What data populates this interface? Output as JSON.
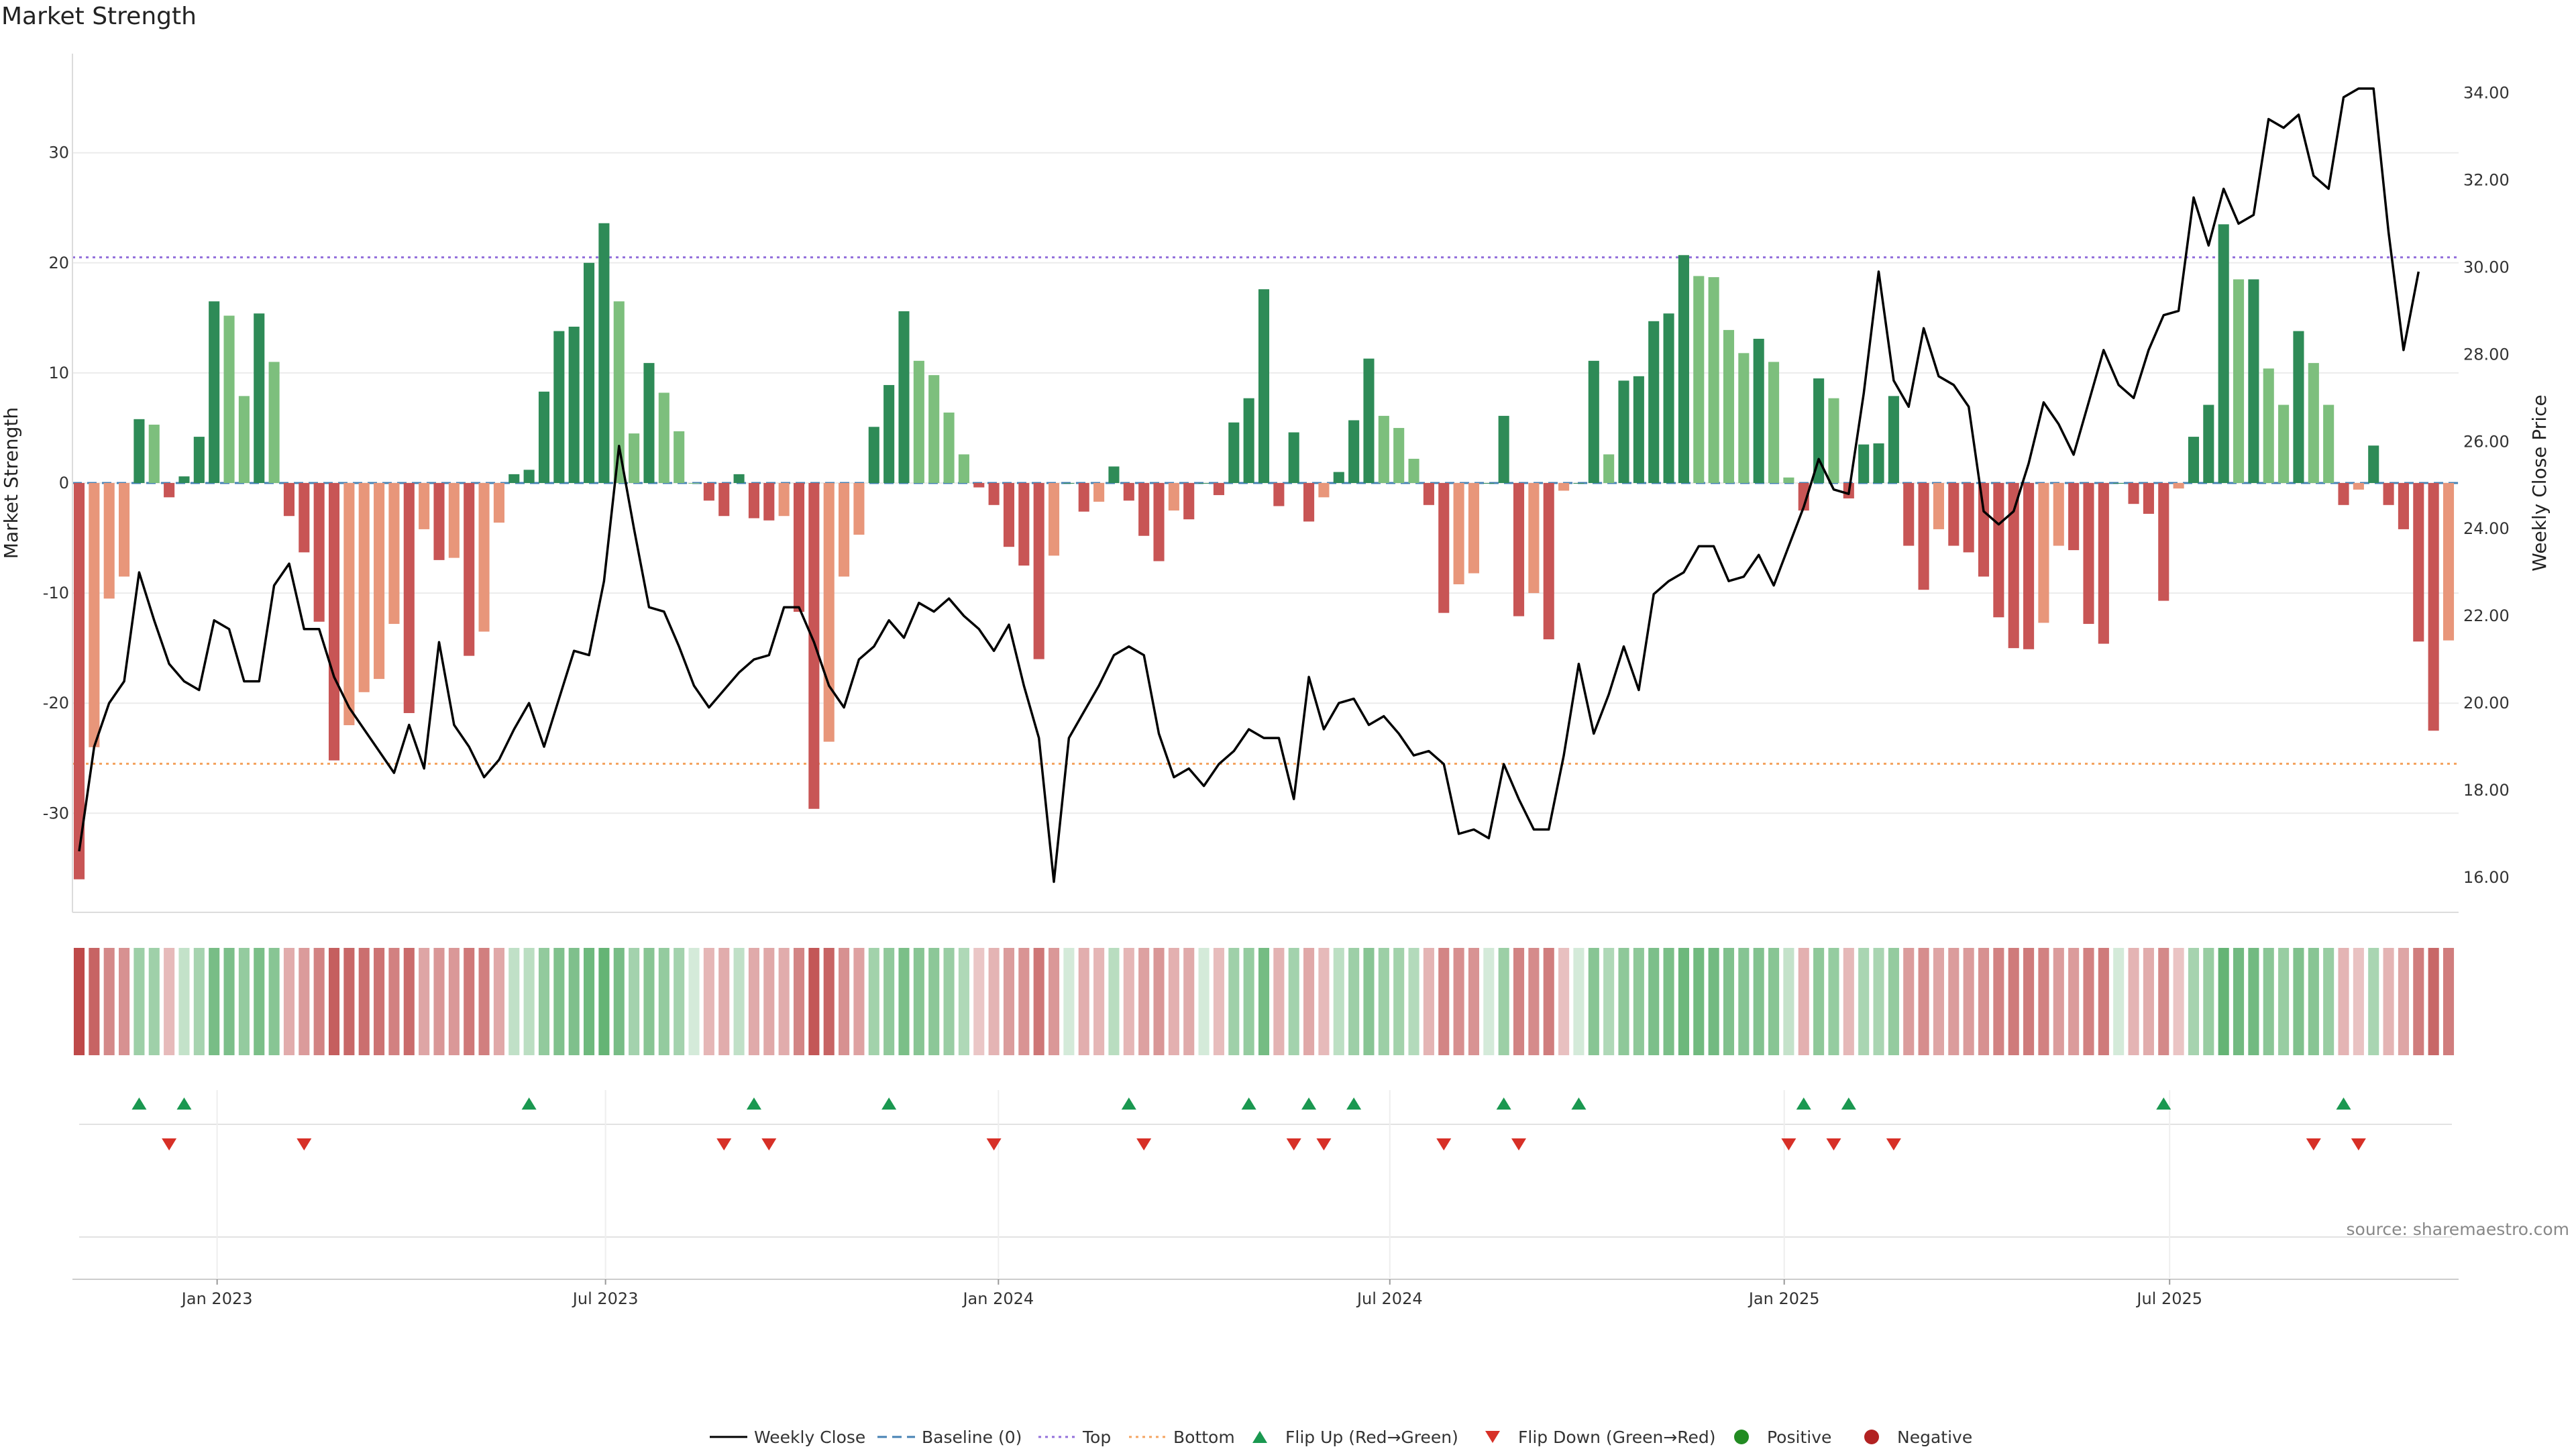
{
  "chart_data": {
    "type": "bar",
    "title": "Market Strength",
    "source": "source: sharemaestro.com",
    "y_left_label": "Market Strength",
    "y_right_label": "Weekly Close Price",
    "y_left_range": [
      -39,
      39
    ],
    "y_left_ticks": [
      -30,
      -20,
      -10,
      0,
      10,
      20,
      30
    ],
    "y_right_range": [
      15.2,
      34.9
    ],
    "y_right_ticks": [
      "16.00",
      "18.00",
      "20.00",
      "22.00",
      "24.00",
      "26.00",
      "28.00",
      "30.00",
      "32.00",
      "34.00"
    ],
    "x_ticks": [
      "Jan 2023",
      "Jul 2023",
      "Jan 2024",
      "Jul 2024",
      "Jan 2025",
      "Jul 2025"
    ],
    "x_tick_weeks": [
      9.2,
      35.1,
      61.3,
      87.4,
      113.7,
      139.4
    ],
    "top_line": 20.5,
    "bottom_line": -25.5,
    "strength": [
      -36,
      -24,
      -10.5,
      -8.5,
      5.8,
      5.3,
      -1.3,
      0.6,
      4.2,
      16.5,
      15.2,
      7.9,
      15.4,
      11,
      -3,
      -6.3,
      -12.6,
      -25.2,
      -22,
      -19,
      -17.8,
      -12.8,
      -20.9,
      -4.2,
      -7,
      -6.8,
      -15.7,
      -13.5,
      -3.6,
      0.8,
      1.2,
      8.3,
      13.8,
      14.2,
      20,
      23.6,
      16.5,
      4.5,
      10.9,
      8.2,
      4.7,
      0,
      -1.6,
      -3,
      0.8,
      -3.2,
      -3.4,
      -3,
      -11.7,
      -29.6,
      -23.5,
      -8.5,
      -4.7,
      5.1,
      8.9,
      15.6,
      11.1,
      9.8,
      6.4,
      2.6,
      -0.4,
      -2,
      -5.8,
      -7.5,
      -16,
      -6.6,
      0,
      -2.6,
      -1.7,
      1.5,
      -1.6,
      -4.8,
      -7.1,
      -2.5,
      -3.3,
      0,
      -1.1,
      5.5,
      7.7,
      17.6,
      -2.1,
      4.6,
      -3.5,
      -1.3,
      1,
      5.7,
      11.3,
      6.1,
      5,
      2.2,
      -2,
      -11.8,
      -9.2,
      -8.2,
      0,
      6.1,
      -12.1,
      -10,
      -14.2,
      -0.7,
      0,
      11.1,
      2.6,
      9.3,
      9.7,
      14.7,
      15.4,
      20.7,
      18.8,
      18.7,
      13.9,
      11.8,
      13.1,
      11,
      0.5,
      -2.5,
      9.5,
      7.7,
      -1.4,
      3.5,
      3.6,
      7.9,
      -5.7,
      -9.7,
      -4.2,
      -5.7,
      -6.3,
      -8.5,
      -12.2,
      -15,
      -15.1,
      -12.7,
      -5.7,
      -6.1,
      -12.8,
      -14.6,
      0,
      -1.9,
      -2.8,
      -10.7,
      -0.5,
      4.2,
      7.1,
      23.5,
      18.5,
      18.5,
      10.4,
      7.1,
      13.8,
      10.9,
      7.1,
      -2,
      -0.6,
      3.4,
      -2,
      -4.2,
      -14.4,
      -22.5,
      -14.3
    ],
    "price": [
      16.6,
      19,
      20,
      20.5,
      23,
      21.9,
      20.9,
      20.5,
      20.3,
      21.9,
      21.7,
      20.5,
      20.5,
      22.7,
      23.2,
      21.7,
      21.7,
      20.6,
      19.9,
      19.4,
      18.9,
      18.4,
      19.5,
      18.5,
      21.4,
      19.5,
      19,
      18.3,
      18.7,
      19.4,
      20,
      19,
      20.1,
      21.2,
      21.1,
      22.8,
      25.9,
      24,
      22.2,
      22.1,
      21.3,
      20.4,
      19.9,
      20.3,
      20.7,
      21,
      21.1,
      22.2,
      22.2,
      21.4,
      20.4,
      19.9,
      21,
      21.3,
      21.9,
      21.5,
      22.3,
      22.1,
      22.4,
      22,
      21.7,
      21.2,
      21.8,
      20.4,
      19.2,
      15.9,
      19.2,
      19.8,
      20.4,
      21.1,
      21.3,
      21.1,
      19.3,
      18.3,
      18.5,
      18.1,
      18.6,
      18.9,
      19.4,
      19.2,
      19.2,
      17.8,
      20.6,
      19.4,
      20,
      20.1,
      19.5,
      19.7,
      19.3,
      18.8,
      18.9,
      18.6,
      17,
      17.1,
      16.9,
      18.6,
      17.8,
      17.1,
      17.1,
      18.8,
      20.9,
      19.3,
      20.2,
      21.3,
      20.3,
      22.5,
      22.8,
      23,
      23.6,
      23.6,
      22.8,
      22.9,
      23.4,
      22.7,
      23.6,
      24.5,
      25.6,
      24.9,
      24.8,
      27.1,
      29.9,
      27.4,
      26.8,
      28.6,
      27.5,
      27.3,
      26.8,
      24.4,
      24.1,
      24.4,
      25.5,
      26.9,
      26.4,
      25.7,
      26.9,
      28.1,
      27.3,
      27,
      28.1,
      28.9,
      29,
      31.6,
      30.5,
      31.8,
      31,
      31.2,
      33.4,
      33.2,
      33.5,
      32.1,
      31.8,
      33.9,
      34.1,
      34.1,
      30.8,
      28.1,
      29.9
    ],
    "flip_up_weeks": [
      4,
      7,
      30,
      45,
      54,
      70,
      78,
      82,
      85,
      95,
      100,
      115,
      118,
      139,
      151
    ],
    "flip_down_weeks": [
      6,
      15,
      43,
      46,
      61,
      71,
      81,
      83,
      91,
      96,
      114,
      117,
      121,
      149,
      152
    ],
    "legend": [
      "Weekly Close",
      "Baseline (0)",
      "Top",
      "Bottom",
      "Flip Up (Red→Green)",
      "Flip Down (Green→Red)",
      "Positive",
      "Negative"
    ],
    "colors": {
      "strong_green": "#2e8b57",
      "light_green": "#7dbf7d",
      "strong_red": "#c85555",
      "light_red": "#e8967a",
      "price_line": "#000000",
      "baseline": "#4682b4",
      "top": "#9370db",
      "bottom": "#f4a460",
      "flip_up": "#1a9850",
      "flip_down": "#d73027",
      "positive": "#228b22",
      "negative": "#b22222"
    }
  }
}
